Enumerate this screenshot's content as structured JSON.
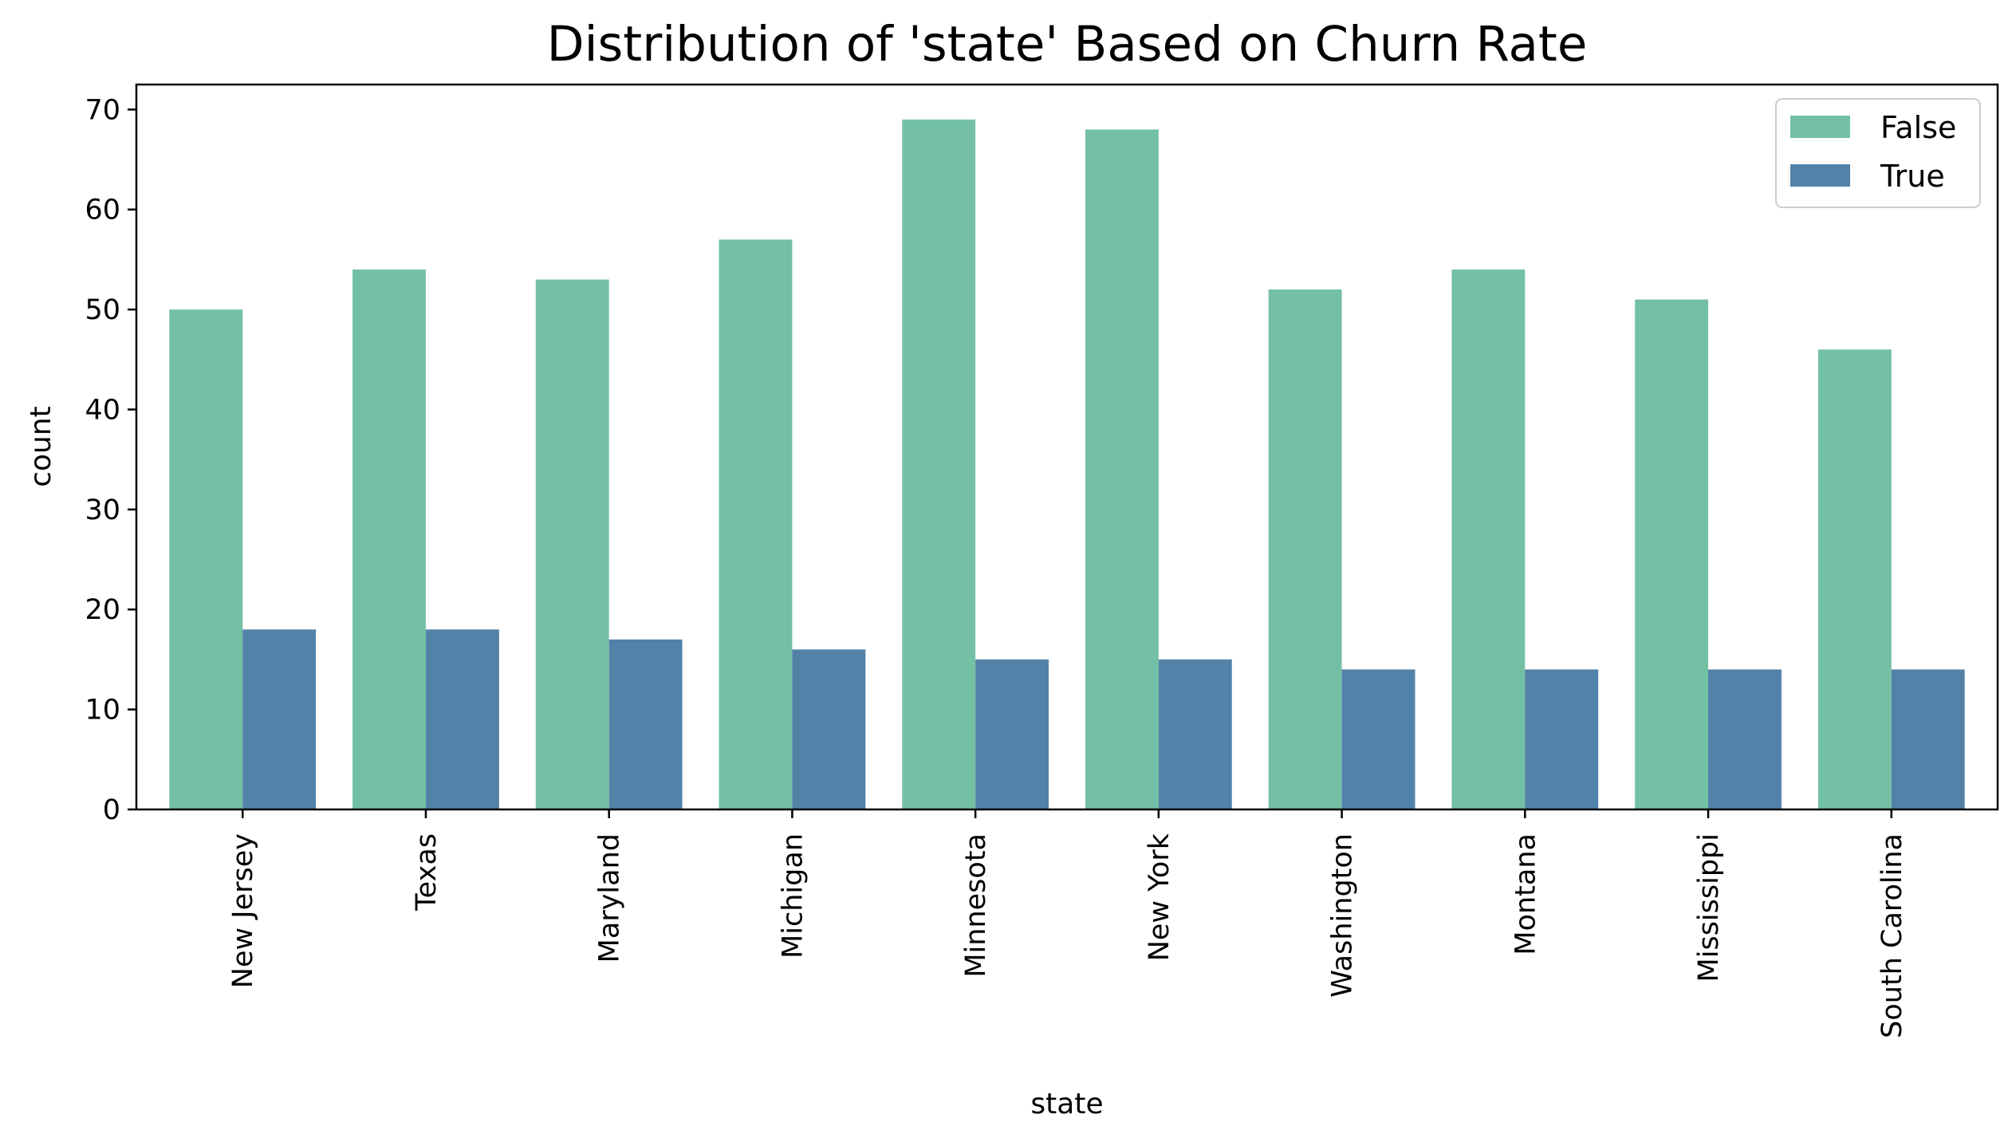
{
  "chart_data": {
    "type": "bar",
    "title": "Distribution of 'state' Based on Churn Rate",
    "xlabel": "state",
    "ylabel": "count",
    "categories": [
      "New Jersey",
      "Texas",
      "Maryland",
      "Michigan",
      "Minnesota",
      "New York",
      "Washington",
      "Montana",
      "Mississippi",
      "South Carolina"
    ],
    "series": [
      {
        "name": "False",
        "color": "#74c0a5",
        "values": [
          50,
          54,
          53,
          57,
          69,
          68,
          52,
          54,
          51,
          46
        ]
      },
      {
        "name": "True",
        "color": "#5282a8",
        "values": [
          18,
          18,
          17,
          16,
          15,
          15,
          14,
          14,
          14,
          14
        ]
      }
    ],
    "ylim": [
      0,
      72.5
    ],
    "yticks": [
      0,
      10,
      20,
      30,
      40,
      50,
      60,
      70
    ],
    "grid": false,
    "legend_position": "top-right"
  }
}
